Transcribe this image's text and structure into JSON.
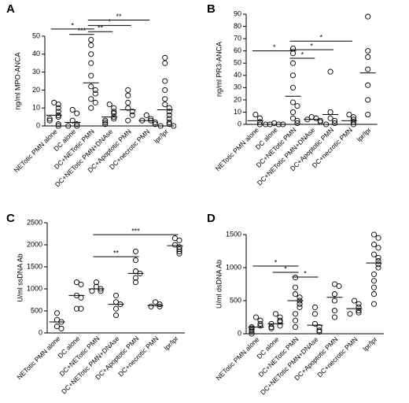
{
  "chart_data": [
    {
      "type": "dot",
      "panel": "A",
      "ylabel": "ng/ml MPO-ANCA",
      "categories": [
        "NETotic PMN alone",
        "DC alone",
        "DC+NETotic PMN",
        "DC+NETotic PMN+DNAse",
        "DC+Apoptotic PMN",
        "DC+necrotic PMN",
        "lpr/lpr"
      ],
      "points": [
        [
          13,
          12,
          10,
          8,
          6,
          5,
          4,
          3,
          1,
          0
        ],
        [
          9,
          7,
          3,
          1,
          0,
          0
        ],
        [
          48,
          45,
          40,
          35,
          28,
          22,
          20,
          18,
          15,
          13,
          10
        ],
        [
          12,
          10,
          8,
          7,
          5,
          4,
          3,
          2,
          1
        ],
        [
          20,
          17,
          13,
          10,
          8,
          6,
          3
        ],
        [
          6,
          4,
          3,
          3,
          2,
          1
        ],
        [
          38,
          35,
          25,
          20,
          15,
          12,
          10,
          8,
          6,
          4,
          2,
          1,
          0,
          0
        ]
      ],
      "medians": [
        6,
        2,
        24,
        5,
        9,
        3,
        9
      ],
      "brackets": [
        {
          "from": 0,
          "to": 2,
          "y": 54,
          "label": "*"
        },
        {
          "from": 1,
          "to": 2,
          "y": 51,
          "label": "***"
        },
        {
          "from": 2,
          "to": 5,
          "y": 59,
          "label": "**"
        },
        {
          "from": 2,
          "to": 4,
          "y": 56,
          "label": "*"
        },
        {
          "from": 2,
          "to": 3,
          "y": 52.5,
          "label": "**"
        }
      ],
      "ylim": [
        0,
        50
      ],
      "yticks": [
        0,
        10,
        20,
        30,
        40,
        50
      ],
      "color": "#000000"
    },
    {
      "type": "dot",
      "panel": "B",
      "ylabel": "ng/ml PR3-ANCA",
      "categories": [
        "NETotic PMN alone",
        "DC alone",
        "DC+NETotic PMN",
        "DC+NETotic PMN+DNAse",
        "DC+Apoptotic PMN",
        "DC+necrotic PMN",
        "lpr/lpr"
      ],
      "points": [
        [
          8,
          5,
          2,
          0
        ],
        [
          1,
          0,
          0,
          0,
          0
        ],
        [
          62,
          58,
          50,
          40,
          30,
          18,
          15,
          10,
          5,
          3,
          1
        ],
        [
          6,
          5,
          4,
          3,
          2
        ],
        [
          43,
          10,
          5,
          3,
          1,
          0
        ],
        [
          8,
          6,
          4,
          2,
          0
        ],
        [
          88,
          60,
          55,
          45,
          32,
          20,
          8
        ]
      ],
      "medians": [
        3,
        0,
        23,
        4,
        8,
        3,
        42
      ],
      "brackets": [
        {
          "from": 0,
          "to": 2,
          "y": 60,
          "label": "*"
        },
        {
          "from": 2,
          "to": 5,
          "y": 68,
          "label": "*"
        },
        {
          "from": 2,
          "to": 4,
          "y": 61,
          "label": "*"
        },
        {
          "from": 2,
          "to": 3,
          "y": 54,
          "label": "*"
        }
      ],
      "ylim": [
        0,
        90
      ],
      "yticks": [
        0,
        10,
        20,
        30,
        40,
        50,
        60,
        70,
        80,
        90
      ],
      "color": "#000000"
    },
    {
      "type": "dot",
      "panel": "C",
      "ylabel": "U/ml ssDNA Ab",
      "categories": [
        "NETotic PMN alone",
        "DC alone",
        "DC+NETotic PMN",
        "DC+NETotic PMN+DNAse",
        "DC+Apoptotic PMN",
        "DC+necrotic PMN",
        "lpr/lpr"
      ],
      "points": [
        [
          450,
          300,
          250,
          150,
          100
        ],
        [
          1150,
          1100,
          850,
          800,
          550,
          550
        ],
        [
          1150,
          1050,
          1000,
          950,
          950
        ],
        [
          850,
          700,
          650,
          550,
          400
        ],
        [
          1850,
          1650,
          1400,
          1350,
          1250,
          1150
        ],
        [
          700,
          650,
          600,
          600
        ],
        [
          2150,
          2100,
          2000,
          1950,
          1900,
          1850,
          1800
        ]
      ],
      "medians": [
        250,
        850,
        1000,
        650,
        1350,
        620,
        1980
      ],
      "brackets": [
        {
          "from": 2,
          "to": 6,
          "y": 2230,
          "label": "***"
        },
        {
          "from": 2,
          "to": 4,
          "y": 1730,
          "label": "**"
        }
      ],
      "ylim": [
        0,
        2500
      ],
      "yticks": [
        0,
        500,
        1000,
        1500,
        2000,
        2500
      ],
      "color": "#000000"
    },
    {
      "type": "dot",
      "panel": "D",
      "ylabel": "U/ml dsDNA Ab",
      "categories": [
        "NETotic PMN alone",
        "DC alone",
        "DC+NETotic PMN",
        "DC+NETotic PMN+DNAse",
        "DC+Apoptotic PMN",
        "DC+necrotic PMN",
        "lpr/lpr"
      ],
      "points": [
        [
          250,
          200,
          150,
          120,
          100,
          80,
          50,
          30,
          0
        ],
        [
          300,
          250,
          200,
          180,
          150,
          120,
          100,
          80
        ],
        [
          850,
          700,
          600,
          550,
          500,
          450,
          400,
          300,
          200,
          100
        ],
        [
          400,
          300,
          150,
          100,
          50,
          30
        ],
        [
          750,
          720,
          600,
          500,
          350,
          250
        ],
        [
          500,
          450,
          400,
          350,
          320,
          300
        ],
        [
          1500,
          1450,
          1350,
          1300,
          1200,
          1150,
          1100,
          1050,
          1000,
          900,
          800,
          700,
          600,
          450
        ]
      ],
      "medians": [
        100,
        150,
        500,
        130,
        550,
        380,
        1070
      ],
      "brackets": [
        {
          "from": 0,
          "to": 2,
          "y": 1024,
          "label": "*"
        },
        {
          "from": 1,
          "to": 2,
          "y": 929,
          "label": "*"
        },
        {
          "from": 2,
          "to": 3,
          "y": 857,
          "label": "*"
        }
      ],
      "ylim": [
        0,
        1500
      ],
      "yticks": [
        0,
        500,
        1000,
        1500
      ],
      "color": "#000000"
    }
  ]
}
